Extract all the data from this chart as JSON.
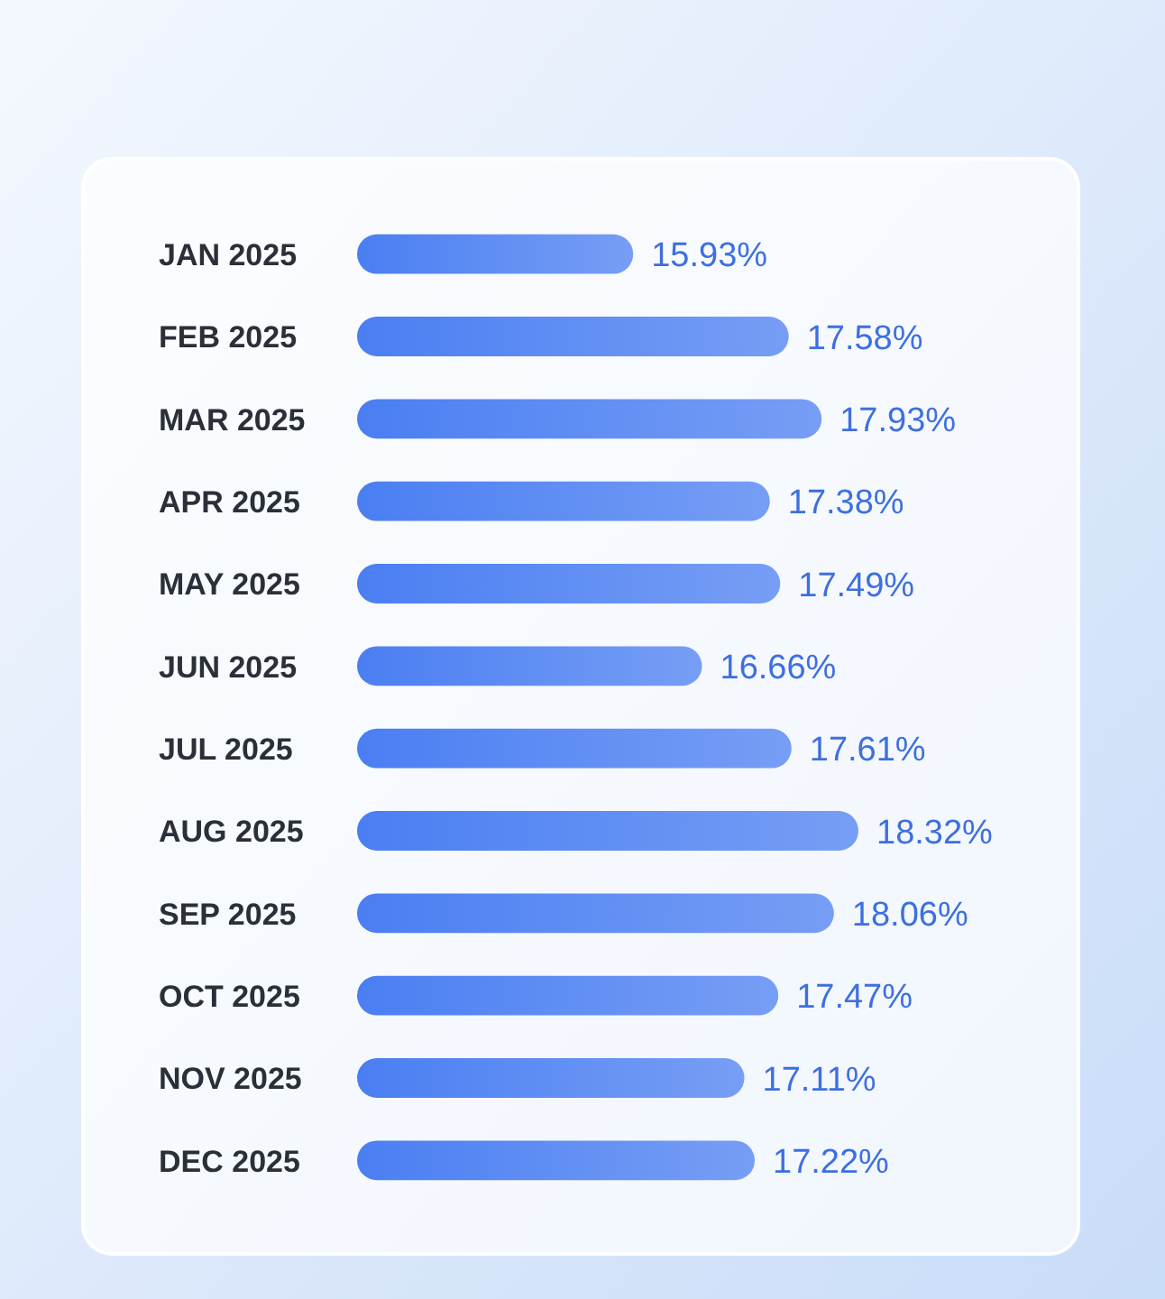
{
  "chart_data": {
    "type": "bar",
    "orientation": "horizontal",
    "categories": [
      "JAN 2025",
      "FEB 2025",
      "MAR 2025",
      "APR 2025",
      "MAY 2025",
      "JUN 2025",
      "JUL 2025",
      "AUG 2025",
      "SEP 2025",
      "OCT 2025",
      "NOV 2025",
      "DEC 2025"
    ],
    "values": [
      15.93,
      17.58,
      17.93,
      17.38,
      17.49,
      16.66,
      17.61,
      18.32,
      18.06,
      17.47,
      17.11,
      17.22
    ],
    "value_labels": [
      "15.93%",
      "17.58%",
      "17.93%",
      "17.38%",
      "17.49%",
      "16.66%",
      "17.61%",
      "18.32%",
      "18.06%",
      "17.47%",
      "17.11%",
      "17.22%"
    ],
    "color": "#4a7ef2",
    "xlim": [
      13,
      18.32
    ],
    "tick_labels": "y"
  }
}
